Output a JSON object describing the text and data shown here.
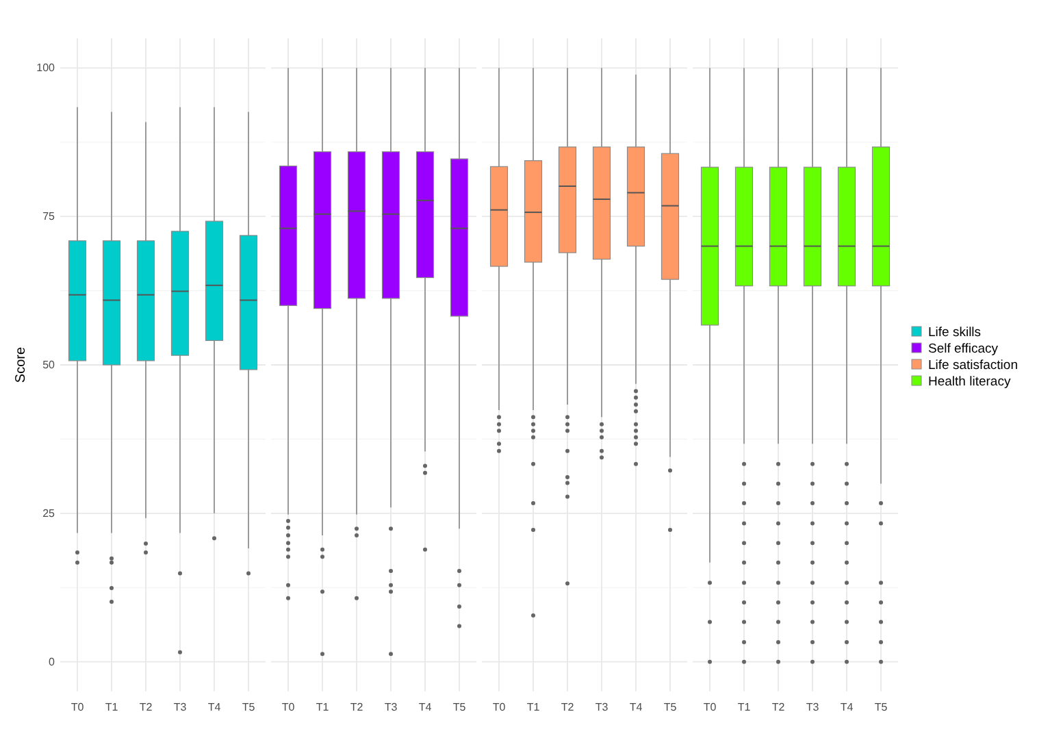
{
  "chart_data": [
    {
      "type": "box",
      "ylabel": "Score",
      "categories": [
        "T0",
        "T1",
        "T2",
        "T3",
        "T4",
        "T5"
      ],
      "ylim": [
        -5,
        105
      ],
      "yticks": [
        0,
        25,
        50,
        75,
        100
      ],
      "grid": true,
      "legend": "right",
      "series": [
        {
          "name": "Life skills",
          "color": "#00cccc",
          "boxes": [
            {
              "low": 21.7,
              "q1": 50.7,
              "median": 61.8,
              "q3": 70.9,
              "high": 93.4,
              "outliers": [
                18.4,
                16.7
              ]
            },
            {
              "low": 21.7,
              "q1": 50.0,
              "median": 60.9,
              "q3": 70.9,
              "high": 92.6,
              "outliers": [
                17.4,
                16.7,
                12.4,
                10.1
              ]
            },
            {
              "low": 24.2,
              "q1": 50.7,
              "median": 61.8,
              "q3": 70.9,
              "high": 90.9,
              "outliers": [
                19.9,
                18.4
              ]
            },
            {
              "low": 21.7,
              "q1": 51.6,
              "median": 62.4,
              "q3": 72.5,
              "high": 93.4,
              "outliers": [
                14.9,
                1.6
              ]
            },
            {
              "low": 25.0,
              "q1": 54.1,
              "median": 63.4,
              "q3": 74.2,
              "high": 93.4,
              "outliers": [
                20.8
              ]
            },
            {
              "low": 19.1,
              "q1": 49.2,
              "median": 60.9,
              "q3": 71.8,
              "high": 92.6,
              "outliers": [
                14.9
              ]
            }
          ]
        }
      ]
    },
    {
      "type": "box",
      "categories": [
        "T0",
        "T1",
        "T2",
        "T3",
        "T4",
        "T5"
      ],
      "ylim": [
        -5,
        105
      ],
      "yticks": [
        0,
        25,
        50,
        75,
        100
      ],
      "grid": true,
      "legend": "right",
      "tick_labels": "x",
      "series": [
        {
          "name": "Self efficacy",
          "color": "#9900ff",
          "boxes": [
            {
              "low": 24.8,
              "q1": 60.0,
              "median": 73.0,
              "q3": 83.5,
              "high": 100,
              "outliers": [
                23.7,
                22.6,
                21.3,
                20.0,
                18.9,
                17.7,
                12.9,
                10.7
              ]
            },
            {
              "low": 21.3,
              "q1": 59.5,
              "median": 75.4,
              "q3": 85.9,
              "high": 100,
              "outliers": [
                18.9,
                17.7,
                11.8,
                1.3
              ]
            },
            {
              "low": 24.8,
              "q1": 61.2,
              "median": 75.9,
              "q3": 85.9,
              "high": 100,
              "outliers": [
                22.4,
                21.3,
                10.7
              ]
            },
            {
              "low": 26.0,
              "q1": 61.2,
              "median": 75.4,
              "q3": 85.9,
              "high": 100,
              "outliers": [
                22.4,
                15.3,
                12.9,
                11.8,
                1.3
              ]
            },
            {
              "low": 35.4,
              "q1": 64.7,
              "median": 77.7,
              "q3": 85.9,
              "high": 100,
              "outliers": [
                33.0,
                31.8,
                18.9
              ]
            },
            {
              "low": 22.4,
              "q1": 58.2,
              "median": 73.0,
              "q3": 84.7,
              "high": 100,
              "outliers": [
                15.3,
                12.9,
                9.3,
                6.0
              ]
            }
          ]
        }
      ]
    },
    {
      "type": "box",
      "categories": [
        "T0",
        "T1",
        "T2",
        "T3",
        "T4",
        "T5"
      ],
      "ylim": [
        -5,
        105
      ],
      "yticks": [
        0,
        25,
        50,
        75,
        100
      ],
      "grid": true,
      "legend": "right",
      "tick_labels": "x",
      "series": [
        {
          "name": "Life satisfaction",
          "color": "#ff9966",
          "boxes": [
            {
              "low": 42.4,
              "q1": 66.6,
              "median": 76.1,
              "q3": 83.4,
              "high": 100,
              "outliers": [
                41.2,
                40.0,
                38.9,
                36.7,
                35.5
              ]
            },
            {
              "low": 42.4,
              "q1": 67.3,
              "median": 75.7,
              "q3": 84.4,
              "high": 100,
              "outliers": [
                41.2,
                40.0,
                38.9,
                37.8,
                33.3,
                26.7,
                22.2,
                7.8
              ]
            },
            {
              "low": 43.3,
              "q1": 68.9,
              "median": 80.1,
              "q3": 86.7,
              "high": 100,
              "outliers": [
                41.2,
                40.0,
                38.9,
                35.5,
                31.1,
                30.1,
                27.8,
                13.2
              ]
            },
            {
              "low": 41.2,
              "q1": 67.8,
              "median": 77.9,
              "q3": 86.7,
              "high": 100,
              "outliers": [
                40.0,
                38.9,
                37.8,
                35.5,
                34.4
              ]
            },
            {
              "low": 46.8,
              "q1": 70.0,
              "median": 79.0,
              "q3": 86.7,
              "high": 98.9,
              "outliers": [
                45.6,
                44.5,
                43.3,
                42.2,
                40.0,
                38.9,
                37.8,
                36.7,
                33.3
              ]
            },
            {
              "low": 34.5,
              "q1": 64.4,
              "median": 76.8,
              "q3": 85.6,
              "high": 100,
              "outliers": [
                32.2,
                22.2
              ]
            }
          ]
        }
      ]
    },
    {
      "type": "box",
      "categories": [
        "T0",
        "T1",
        "T2",
        "T3",
        "T4",
        "T5"
      ],
      "ylim": [
        -5,
        105
      ],
      "yticks": [
        0,
        25,
        50,
        75,
        100
      ],
      "grid": true,
      "legend": "right",
      "tick_labels": "x",
      "series": [
        {
          "name": "Health literacy",
          "color": "#66ff00",
          "boxes": [
            {
              "low": 16.7,
              "q1": 56.7,
              "median": 70.0,
              "q3": 83.3,
              "high": 100,
              "outliers": [
                13.3,
                6.7,
                0
              ]
            },
            {
              "low": 36.7,
              "q1": 63.3,
              "median": 70.0,
              "q3": 83.3,
              "high": 100,
              "outliers": [
                33.3,
                30.0,
                26.7,
                23.3,
                20.0,
                16.7,
                13.3,
                10.0,
                6.7,
                3.3,
                0
              ]
            },
            {
              "low": 36.7,
              "q1": 63.3,
              "median": 70.0,
              "q3": 83.3,
              "high": 100,
              "outliers": [
                33.3,
                30.0,
                26.7,
                23.3,
                20.0,
                16.7,
                13.3,
                10.0,
                6.7,
                3.3,
                0
              ]
            },
            {
              "low": 36.7,
              "q1": 63.3,
              "median": 70.0,
              "q3": 83.3,
              "high": 100,
              "outliers": [
                33.3,
                30.0,
                26.7,
                23.3,
                20.0,
                16.7,
                13.3,
                10.0,
                6.7,
                3.3,
                0
              ]
            },
            {
              "low": 36.7,
              "q1": 63.3,
              "median": 70.0,
              "q3": 83.3,
              "high": 100,
              "outliers": [
                33.3,
                30.0,
                26.7,
                23.3,
                20.0,
                16.7,
                13.3,
                10.0,
                6.7,
                3.3,
                0
              ]
            },
            {
              "low": 30.0,
              "q1": 63.3,
              "median": 70.0,
              "q3": 86.7,
              "high": 100,
              "outliers": [
                26.7,
                23.3,
                13.3,
                10.0,
                6.7,
                3.3,
                0
              ]
            }
          ]
        }
      ]
    }
  ]
}
